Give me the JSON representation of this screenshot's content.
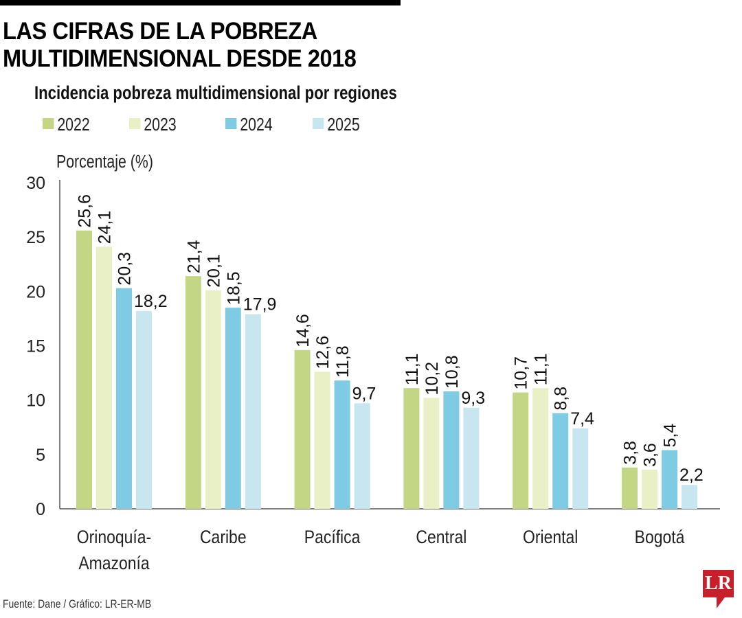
{
  "header": {
    "title_line1": "LAS CIFRAS DE LA POBREZA",
    "title_line2": "MULTIDIMENSIONAL DESDE 2018",
    "subtitle": "Incidencia pobreza multidimensional por regiones"
  },
  "chart_data": {
    "type": "bar",
    "title": "Incidencia pobreza multidimensional por regiones",
    "ylabel": "Porcentaje (%)",
    "ylim": [
      0,
      30
    ],
    "yticks": [
      0,
      5,
      10,
      15,
      20,
      25,
      30
    ],
    "grid": false,
    "legend": "top-left",
    "categories": [
      "Orinoquía-\nAmazonía",
      "Caribe",
      "Pacífica",
      "Central",
      "Oriental",
      "Bogotá"
    ],
    "series": [
      {
        "name": "2022",
        "color": "#c3d686",
        "values": [
          25.6,
          21.4,
          14.6,
          11.1,
          10.7,
          3.8
        ],
        "labels": [
          "25,6",
          "21,4",
          "14,6",
          "11,1",
          "10,7",
          "3,8"
        ]
      },
      {
        "name": "2023",
        "color": "#eaf0c6",
        "values": [
          24.1,
          20.1,
          12.6,
          10.2,
          11.1,
          3.6
        ],
        "labels": [
          "24,1",
          "20,1",
          "12,6",
          "10,2",
          "11,1",
          "3,6"
        ]
      },
      {
        "name": "2024",
        "color": "#7fcbe3",
        "values": [
          20.3,
          18.5,
          11.8,
          10.8,
          8.8,
          5.4
        ],
        "labels": [
          "20,3",
          "18,5",
          "11,8",
          "10,8",
          "8,8",
          "5,4"
        ]
      },
      {
        "name": "2025",
        "color": "#c7e6f0",
        "values": [
          18.2,
          17.9,
          9.7,
          9.3,
          7.4,
          2.2
        ],
        "labels": [
          "18,2",
          "17,9",
          "9,7",
          "9,3",
          "7,4",
          "2,2"
        ]
      }
    ]
  },
  "footer": {
    "source": "Fuente: Dane / Gráfico: LR-ER-MB",
    "logo": "LR"
  }
}
